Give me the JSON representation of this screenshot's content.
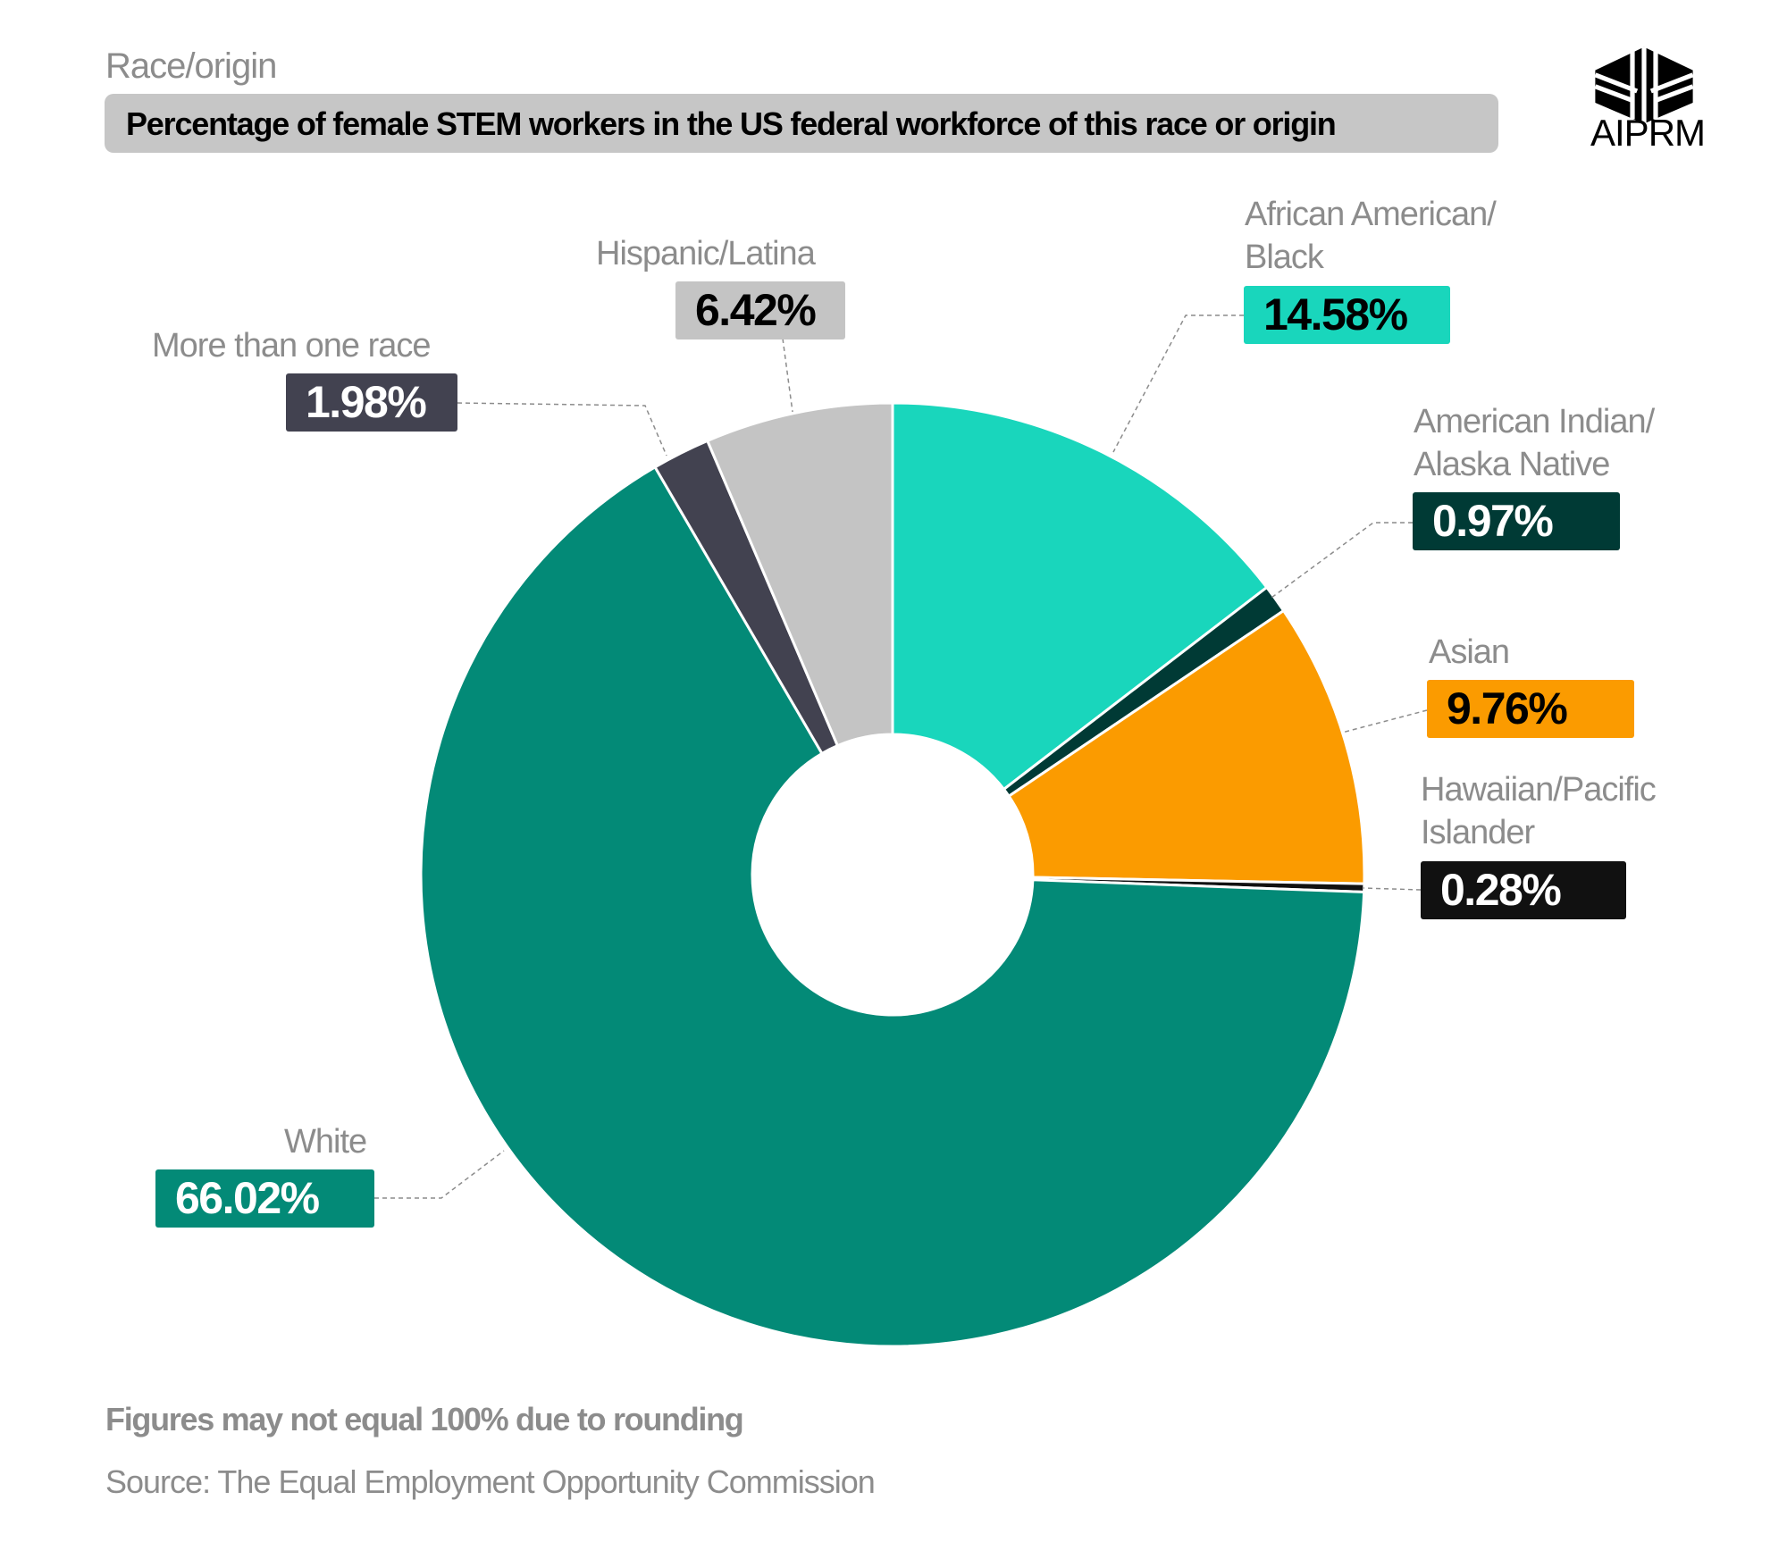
{
  "header": {
    "subtitle": "Race/origin",
    "title": "Percentage of female STEM workers in the US federal workforce of this race or origin"
  },
  "logo": {
    "text": "AIPRM",
    "icon": "aiprm-cube-logo"
  },
  "chart_data": {
    "type": "pie",
    "donut": true,
    "start": "top, clockwise",
    "categories": [
      "African American/Black",
      "American Indian/Alaska Native",
      "Asian",
      "Hawaiian/Pacific Islander",
      "White",
      "More than one race",
      "Hispanic/Latina"
    ],
    "values": [
      14.58,
      0.97,
      9.76,
      0.28,
      66.02,
      1.98,
      6.42
    ],
    "value_labels": [
      "14.58%",
      "0.97%",
      "9.76%",
      "0.28%",
      "66.02%",
      "1.98%",
      "6.42%"
    ],
    "label_lines": [
      [
        "African American/",
        "Black"
      ],
      [
        "American Indian/",
        "Alaska Native"
      ],
      [
        "Asian"
      ],
      [
        "Hawaiian/Pacific",
        "Islander"
      ],
      [
        "White"
      ],
      [
        "More than one race"
      ],
      [
        "Hispanic/Latina"
      ]
    ],
    "colors": [
      "#19d6bc",
      "#003a35",
      "#fb9b00",
      "#111111",
      "#038a77",
      "#424250",
      "#c4c4c4"
    ],
    "label_text_colors": [
      "#000000",
      "#ffffff",
      "#000000",
      "#ffffff",
      "#ffffff",
      "#ffffff",
      "#000000"
    ]
  },
  "footer": {
    "note": "Figures may not equal 100% due to rounding",
    "source": "Source: The Equal Employment Opportunity Commission"
  }
}
